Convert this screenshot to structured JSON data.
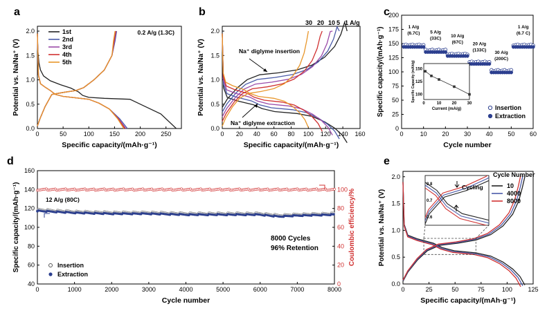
{
  "chart_data": [
    {
      "panel": "a",
      "type": "line",
      "xlabel": "Specific capacity/(mAh·g⁻¹)",
      "ylabel": "Potential vs. Na/Na⁺ (V)",
      "xlim": [
        0,
        280
      ],
      "ylim": [
        0,
        2.1
      ],
      "xticks": [
        0,
        50,
        100,
        150,
        200,
        250
      ],
      "yticks": [
        0.0,
        0.5,
        1.0,
        1.5,
        2.0
      ],
      "annotation": "0.2 A/g (1.3C)",
      "legend_position": "top-left",
      "colors": {
        "1st": "#222222",
        "2nd": "#4a5aa8",
        "3rd": "#9a4aa8",
        "4th": "#d03030",
        "5th": "#e8962a"
      },
      "series": [
        {
          "name": "1st",
          "discharge": [
            [
              0,
              2.0
            ],
            [
              1,
              1.6
            ],
            [
              3,
              1.35
            ],
            [
              6,
              1.2
            ],
            [
              12,
              1.08
            ],
            [
              25,
              0.98
            ],
            [
              45,
              0.9
            ],
            [
              65,
              0.83
            ],
            [
              80,
              0.75
            ],
            [
              88,
              0.68
            ],
            [
              100,
              0.64
            ],
            [
              130,
              0.62
            ],
            [
              180,
              0.6
            ],
            [
              190,
              0.55
            ],
            [
              210,
              0.45
            ],
            [
              240,
              0.3
            ],
            [
              270,
              0.0
            ]
          ],
          "charge": [
            [
              0,
              0.05
            ],
            [
              5,
              0.2
            ],
            [
              15,
              0.45
            ],
            [
              28,
              0.7
            ],
            [
              50,
              0.74
            ],
            [
              75,
              0.78
            ],
            [
              90,
              0.84
            ],
            [
              110,
              1.0
            ],
            [
              130,
              1.2
            ],
            [
              145,
              1.5
            ],
            [
              150,
              1.8
            ],
            [
              152,
              2.0
            ]
          ]
        },
        {
          "name": "2nd",
          "discharge": [
            [
              0,
              1.95
            ],
            [
              2,
              1.1
            ],
            [
              6,
              0.92
            ],
            [
              15,
              0.85
            ],
            [
              25,
              0.78
            ],
            [
              35,
              0.7
            ],
            [
              50,
              0.66
            ],
            [
              100,
              0.6
            ],
            [
              120,
              0.52
            ],
            [
              140,
              0.4
            ],
            [
              160,
              0.2
            ],
            [
              175,
              0.0
            ]
          ],
          "charge": [
            [
              0,
              0.05
            ],
            [
              5,
              0.2
            ],
            [
              15,
              0.45
            ],
            [
              28,
              0.7
            ],
            [
              50,
              0.74
            ],
            [
              75,
              0.78
            ],
            [
              90,
              0.84
            ],
            [
              110,
              1.0
            ],
            [
              130,
              1.2
            ],
            [
              145,
              1.5
            ],
            [
              151,
              1.8
            ],
            [
              154,
              2.0
            ]
          ]
        },
        {
          "name": "3rd",
          "discharge": [
            [
              0,
              1.95
            ],
            [
              2,
              1.1
            ],
            [
              6,
              0.92
            ],
            [
              15,
              0.85
            ],
            [
              25,
              0.78
            ],
            [
              35,
              0.7
            ],
            [
              50,
              0.66
            ],
            [
              100,
              0.6
            ],
            [
              120,
              0.52
            ],
            [
              140,
              0.4
            ],
            [
              158,
              0.2
            ],
            [
              172,
              0.0
            ]
          ],
          "charge": [
            [
              0,
              0.05
            ],
            [
              5,
              0.2
            ],
            [
              15,
              0.45
            ],
            [
              28,
              0.7
            ],
            [
              50,
              0.74
            ],
            [
              75,
              0.78
            ],
            [
              90,
              0.84
            ],
            [
              110,
              1.0
            ],
            [
              130,
              1.2
            ],
            [
              145,
              1.5
            ],
            [
              150,
              1.8
            ],
            [
              153,
              2.0
            ]
          ]
        },
        {
          "name": "4th",
          "discharge": [
            [
              0,
              1.95
            ],
            [
              2,
              1.1
            ],
            [
              6,
              0.92
            ],
            [
              15,
              0.85
            ],
            [
              25,
              0.78
            ],
            [
              35,
              0.7
            ],
            [
              50,
              0.66
            ],
            [
              100,
              0.6
            ],
            [
              120,
              0.52
            ],
            [
              140,
              0.4
            ],
            [
              157,
              0.2
            ],
            [
              170,
              0.0
            ]
          ],
          "charge": [
            [
              0,
              0.05
            ],
            [
              5,
              0.2
            ],
            [
              15,
              0.45
            ],
            [
              28,
              0.7
            ],
            [
              50,
              0.74
            ],
            [
              75,
              0.78
            ],
            [
              90,
              0.84
            ],
            [
              110,
              1.0
            ],
            [
              130,
              1.2
            ],
            [
              145,
              1.5
            ],
            [
              149,
              1.8
            ],
            [
              152,
              2.0
            ]
          ]
        },
        {
          "name": "5th",
          "discharge": [
            [
              0,
              1.95
            ],
            [
              2,
              1.1
            ],
            [
              6,
              0.92
            ],
            [
              15,
              0.85
            ],
            [
              25,
              0.78
            ],
            [
              35,
              0.7
            ],
            [
              50,
              0.66
            ],
            [
              100,
              0.6
            ],
            [
              120,
              0.52
            ],
            [
              140,
              0.4
            ],
            [
              156,
              0.2
            ],
            [
              168,
              0.0
            ]
          ],
          "charge": [
            [
              0,
              0.05
            ],
            [
              5,
              0.2
            ],
            [
              15,
              0.45
            ],
            [
              28,
              0.7
            ],
            [
              50,
              0.74
            ],
            [
              75,
              0.78
            ],
            [
              90,
              0.84
            ],
            [
              110,
              1.0
            ],
            [
              130,
              1.2
            ],
            [
              145,
              1.5
            ],
            [
              148,
              1.8
            ],
            [
              151,
              2.0
            ]
          ]
        }
      ]
    },
    {
      "panel": "b",
      "type": "line",
      "xlabel": "Specific capacity/(mAh·g⁻¹)",
      "ylabel": "Potential vs. Na/Na⁺ (V)",
      "xlim": [
        0,
        160
      ],
      "ylim": [
        0,
        2.1
      ],
      "xticks": [
        0,
        20,
        40,
        60,
        80,
        100,
        120,
        140,
        160
      ],
      "yticks": [
        0.0,
        0.5,
        1.0,
        1.5,
        2.0
      ],
      "rate_labels": [
        "30",
        "20",
        "10",
        "5",
        "1 A/g"
      ],
      "annotations": [
        "Na⁺ diglyme insertion",
        "Na⁺ diglyme extraction"
      ],
      "series": [
        {
          "name": "1",
          "color": "#222222",
          "cap": 145
        },
        {
          "name": "5",
          "color": "#4a5aa8",
          "cap": 136
        },
        {
          "name": "10",
          "color": "#9a4aa8",
          "cap": 128
        },
        {
          "name": "20",
          "color": "#d03030",
          "cap": 116
        },
        {
          "name": "30",
          "color": "#e8962a",
          "cap": 100
        }
      ]
    },
    {
      "panel": "c",
      "type": "scatter",
      "xlabel": "Cycle number",
      "ylabel": "Specific capacity/(mAh·g⁻¹)",
      "xlim": [
        0,
        60
      ],
      "ylim": [
        0,
        200
      ],
      "xticks": [
        0,
        10,
        20,
        30,
        40,
        50,
        60
      ],
      "yticks": [
        0,
        25,
        50,
        75,
        100,
        125,
        150,
        175,
        200
      ],
      "segments": [
        {
          "label": "1 A/g\n(6.7C)",
          "start": 1,
          "end": 10,
          "value": 145
        },
        {
          "label": "5 A/g\n(33C)",
          "start": 11,
          "end": 20,
          "value": 136
        },
        {
          "label": "10 A/g\n(67C)",
          "start": 21,
          "end": 30,
          "value": 129
        },
        {
          "label": "20 A/g\n(133C)",
          "start": 31,
          "end": 40,
          "value": 115
        },
        {
          "label": "30 A/g\n(200C)",
          "start": 41,
          "end": 50,
          "value": 100
        },
        {
          "label": "1 A/g\n(6.7 C)",
          "start": 51,
          "end": 60,
          "value": 145
        }
      ],
      "legend": [
        "Insertion",
        "Extraction"
      ],
      "legend_position": "bottom-right",
      "marker_color": "#2c3f8f",
      "inset": {
        "xlabel": "Current (mA/g)",
        "ylabel": "Specific Capacity (mAh/g)",
        "xlim": [
          0,
          30
        ],
        "ylim": [
          90,
          160
        ],
        "xticks": [
          0,
          10,
          20,
          30
        ],
        "yticks": [
          100,
          125,
          150
        ],
        "x": [
          1,
          5,
          10,
          20,
          30
        ],
        "values": [
          145,
          136,
          129,
          115,
          100
        ]
      }
    },
    {
      "panel": "d",
      "type": "scatter",
      "xlabel": "Cycle number",
      "ylabel": "Specific capacity/(mAh·g⁻¹)",
      "y2label": "Coulombic efficiency/%",
      "xlim": [
        0,
        8000
      ],
      "ylim": [
        40,
        160
      ],
      "y2lim": [
        0,
        120
      ],
      "xticks": [
        0,
        1000,
        2000,
        3000,
        4000,
        5000,
        6000,
        7000,
        8000
      ],
      "yticks": [
        40,
        60,
        80,
        100,
        120,
        140,
        160
      ],
      "y2ticks": [
        0,
        20,
        40,
        60,
        80,
        100
      ],
      "annotation": "12 A/g (80C)",
      "annotation2": [
        "8000 Cycles",
        "96% Retention"
      ],
      "legend": [
        "Insertion",
        "Extraction"
      ],
      "legend_position": "bottom-left",
      "capacity_color": "#2c3f8f",
      "ce_color": "#d03030",
      "capacity_profile": [
        [
          0,
          118
        ],
        [
          500,
          117
        ],
        [
          1000,
          116
        ],
        [
          2000,
          115
        ],
        [
          3000,
          115
        ],
        [
          4000,
          114
        ],
        [
          5000,
          114
        ],
        [
          6000,
          114
        ],
        [
          6500,
          112
        ],
        [
          7000,
          113
        ],
        [
          8000,
          114
        ]
      ],
      "ce_value": 100
    },
    {
      "panel": "e",
      "type": "line",
      "xlabel": "Specific capacity/(mAh·g⁻¹)",
      "ylabel": "Potential vs. Na/Na⁺ (V)",
      "xlim": [
        0,
        125
      ],
      "ylim": [
        0,
        2.1
      ],
      "xticks": [
        0,
        25,
        50,
        75,
        100,
        125
      ],
      "yticks": [
        0.0,
        0.5,
        1.0,
        1.5,
        2.0
      ],
      "legend_title": "Cycle Number",
      "legend_position": "top-right",
      "inset_annotation": "Cycling",
      "inset": {
        "xlim": [
          20,
          70
        ],
        "ylim": [
          0.55,
          0.85
        ],
        "yticks": [
          0.6,
          0.7,
          0.8
        ]
      },
      "series": [
        {
          "name": "10",
          "color": "#222222",
          "cap": 117
        },
        {
          "name": "4000",
          "color": "#4a5aa8",
          "cap": 115
        },
        {
          "name": "8000",
          "color": "#d03030",
          "cap": 113
        }
      ]
    }
  ]
}
